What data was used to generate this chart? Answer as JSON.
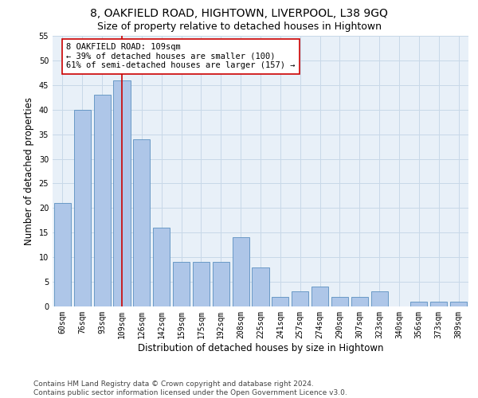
{
  "title1": "8, OAKFIELD ROAD, HIGHTOWN, LIVERPOOL, L38 9GQ",
  "title2": "Size of property relative to detached houses in Hightown",
  "xlabel": "Distribution of detached houses by size in Hightown",
  "ylabel": "Number of detached properties",
  "categories": [
    "60sqm",
    "76sqm",
    "93sqm",
    "109sqm",
    "126sqm",
    "142sqm",
    "159sqm",
    "175sqm",
    "192sqm",
    "208sqm",
    "225sqm",
    "241sqm",
    "257sqm",
    "274sqm",
    "290sqm",
    "307sqm",
    "323sqm",
    "340sqm",
    "356sqm",
    "373sqm",
    "389sqm"
  ],
  "values": [
    21,
    40,
    43,
    46,
    34,
    16,
    9,
    9,
    9,
    14,
    8,
    2,
    3,
    4,
    2,
    2,
    3,
    0,
    1,
    1,
    1
  ],
  "bar_color": "#aec6e8",
  "bar_edge_color": "#5a8fc0",
  "highlight_bar_index": 3,
  "highlight_line_color": "#cc0000",
  "annotation_line1": "8 OAKFIELD ROAD: 109sqm",
  "annotation_line2": "← 39% of detached houses are smaller (100)",
  "annotation_line3": "61% of semi-detached houses are larger (157) →",
  "annotation_box_color": "#ffffff",
  "annotation_box_edge_color": "#cc0000",
  "ylim": [
    0,
    55
  ],
  "yticks": [
    0,
    5,
    10,
    15,
    20,
    25,
    30,
    35,
    40,
    45,
    50,
    55
  ],
  "grid_color": "#c8d8e8",
  "background_color": "#e8f0f8",
  "footer_text": "Contains HM Land Registry data © Crown copyright and database right 2024.\nContains public sector information licensed under the Open Government Licence v3.0.",
  "title1_fontsize": 10,
  "title2_fontsize": 9,
  "xlabel_fontsize": 8.5,
  "ylabel_fontsize": 8.5,
  "annotation_fontsize": 7.5,
  "tick_fontsize": 7,
  "footer_fontsize": 6.5
}
